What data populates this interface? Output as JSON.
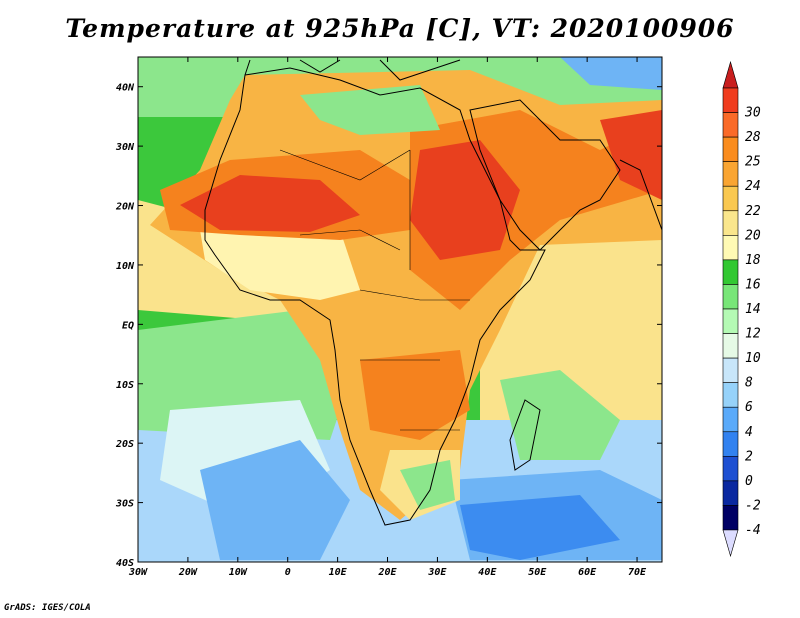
{
  "map": {
    "title": "Temperature at 925hPa [C], VT: 2020100906",
    "credit": "GrADS: IGES/COLA",
    "variable": "temperature",
    "units": "C",
    "pressure_level_hpa": 925,
    "valid_time": "2020100906",
    "lon_range": [
      -30,
      75
    ],
    "lat_range": [
      -40,
      45
    ],
    "lat_labels": [
      "40N",
      "30N",
      "20N",
      "10N",
      "EQ",
      "10S",
      "20S",
      "30S",
      "40S"
    ],
    "lat_values": [
      40,
      30,
      20,
      10,
      0,
      -10,
      -20,
      -30,
      -40
    ],
    "lon_labels": [
      "30W",
      "20W",
      "10W",
      "0",
      "10E",
      "20E",
      "30E",
      "40E",
      "50E",
      "60E",
      "70E"
    ],
    "lon_values": [
      -30,
      -20,
      -10,
      0,
      10,
      20,
      30,
      40,
      50,
      60,
      70
    ]
  },
  "colorbar": {
    "labels": [
      "30",
      "28",
      "25",
      "24",
      "22",
      "20",
      "18",
      "16",
      "14",
      "12",
      "10",
      "8",
      "6",
      "4",
      "2",
      "0",
      "-2",
      "-4"
    ],
    "colors": [
      "#f03c1e",
      "#fa6a28",
      "#fa8c1e",
      "#faa532",
      "#fac850",
      "#fae68c",
      "#fffab4",
      "#32c832",
      "#78e678",
      "#b4fab4",
      "#e6fae6",
      "#c8e6fa",
      "#96d2fa",
      "#5aaafa",
      "#3282f0",
      "#1e50d2",
      "#0a28a0",
      "#dcdcff"
    ],
    "top_arrow_color": "#c81e1e",
    "bottom_arrow_color": "#dcdcff",
    "bottom_band_color": "#000064"
  },
  "palette": {
    "hot": "#e8401e",
    "warm": "#f5821e",
    "mild": "#f8b444",
    "pale": "#fae38c",
    "cream": "#fff4b0",
    "green": "#3cc83c",
    "light_green": "#8ce68c",
    "very_light_green": "#c8f5c8",
    "pale_cyan": "#dcf5f5",
    "light_blue": "#aad7fa",
    "mid_blue": "#6eb4f5",
    "blue": "#3c8cf0"
  }
}
